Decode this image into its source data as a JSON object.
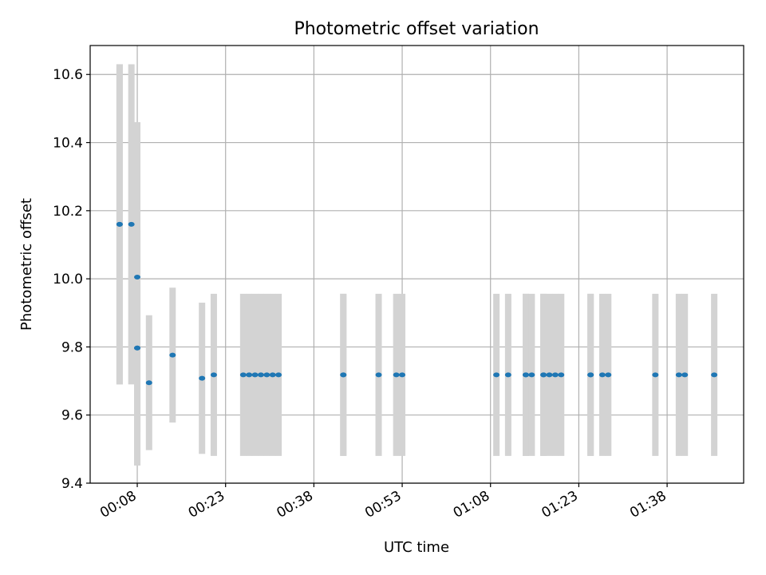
{
  "chart_data": {
    "type": "scatter",
    "title": "Photometric offset variation",
    "xlabel": "UTC time",
    "ylabel": "Photometric offset",
    "x_unit": "HH:MM",
    "xlim": [
      "00:00",
      "01:51"
    ],
    "ylim": [
      9.4,
      10.685
    ],
    "x_ticks": [
      "00:08",
      "00:23",
      "00:38",
      "00:53",
      "01:08",
      "01:23",
      "01:38"
    ],
    "y_ticks": [
      "9.4",
      "9.6",
      "9.8",
      "10.0",
      "10.2",
      "10.4",
      "10.6"
    ],
    "grid": true,
    "legend": "none",
    "colors": {
      "point": "#1f77b4",
      "errorbar": "#d3d3d3",
      "grid": "#b0b0b0",
      "axes": "#000000"
    },
    "series": [
      {
        "points": [
          {
            "time": "00:05",
            "y": 10.16,
            "err": 0.47
          },
          {
            "time": "00:05",
            "y": 10.16,
            "err": 0.47
          },
          {
            "time": "00:07",
            "y": 10.16,
            "err": 0.47
          },
          {
            "time": "00:08",
            "y": 10.005,
            "err": 0.455
          },
          {
            "time": "00:08",
            "y": 9.797,
            "err": 0.345
          },
          {
            "time": "00:08",
            "y": 9.797,
            "err": 0.345
          },
          {
            "time": "00:10",
            "y": 9.695,
            "err": 0.198
          },
          {
            "time": "00:14",
            "y": 9.776,
            "err": 0.198
          },
          {
            "time": "00:19",
            "y": 9.708,
            "err": 0.222
          },
          {
            "time": "00:21",
            "y": 9.718,
            "err": 0.238
          },
          {
            "time": "00:26",
            "y": 9.718,
            "err": 0.238
          },
          {
            "time": "00:27",
            "y": 9.718,
            "err": 0.238
          },
          {
            "time": "00:28",
            "y": 9.718,
            "err": 0.238
          },
          {
            "time": "00:29",
            "y": 9.718,
            "err": 0.238
          },
          {
            "time": "00:30",
            "y": 9.718,
            "err": 0.238
          },
          {
            "time": "00:31",
            "y": 9.718,
            "err": 0.238
          },
          {
            "time": "00:32",
            "y": 9.718,
            "err": 0.238
          },
          {
            "time": "00:43",
            "y": 9.718,
            "err": 0.238
          },
          {
            "time": "00:43",
            "y": 9.718,
            "err": 0.238
          },
          {
            "time": "00:49",
            "y": 9.718,
            "err": 0.238
          },
          {
            "time": "00:52",
            "y": 9.718,
            "err": 0.238
          },
          {
            "time": "00:53",
            "y": 9.718,
            "err": 0.238
          },
          {
            "time": "01:09",
            "y": 9.718,
            "err": 0.238
          },
          {
            "time": "01:11",
            "y": 9.718,
            "err": 0.238
          },
          {
            "time": "01:14",
            "y": 9.718,
            "err": 0.238
          },
          {
            "time": "01:14",
            "y": 9.718,
            "err": 0.238
          },
          {
            "time": "01:15",
            "y": 9.718,
            "err": 0.238
          },
          {
            "time": "01:17",
            "y": 9.718,
            "err": 0.238
          },
          {
            "time": "01:17",
            "y": 9.718,
            "err": 0.238
          },
          {
            "time": "01:18",
            "y": 9.718,
            "err": 0.238
          },
          {
            "time": "01:19",
            "y": 9.718,
            "err": 0.238
          },
          {
            "time": "01:20",
            "y": 9.718,
            "err": 0.238
          },
          {
            "time": "01:25",
            "y": 9.718,
            "err": 0.238
          },
          {
            "time": "01:25",
            "y": 9.718,
            "err": 0.238
          },
          {
            "time": "01:27",
            "y": 9.718,
            "err": 0.238
          },
          {
            "time": "01:28",
            "y": 9.718,
            "err": 0.238
          },
          {
            "time": "01:36",
            "y": 9.718,
            "err": 0.238
          },
          {
            "time": "01:40",
            "y": 9.718,
            "err": 0.238
          },
          {
            "time": "01:41",
            "y": 9.718,
            "err": 0.238
          },
          {
            "time": "01:46",
            "y": 9.718,
            "err": 0.238
          }
        ]
      }
    ]
  }
}
